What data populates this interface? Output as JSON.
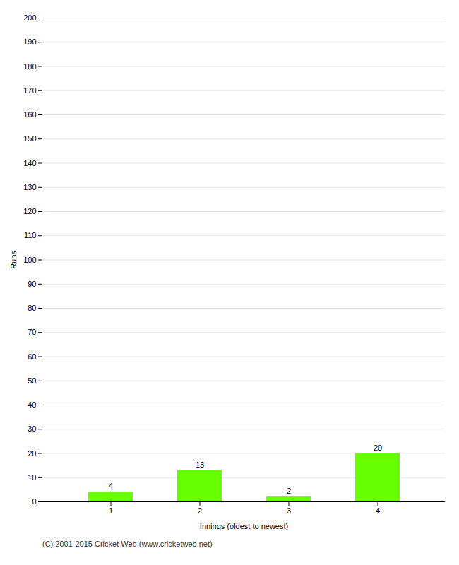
{
  "chart_data": {
    "type": "bar",
    "categories": [
      "1",
      "2",
      "3",
      "4"
    ],
    "values": [
      4,
      13,
      2,
      20
    ],
    "color": "#66ff00",
    "xlabel": "Innings (oldest to newest)",
    "ylabel": "Runs",
    "ylim": [
      0,
      200
    ],
    "yticks": [
      0,
      10,
      20,
      30,
      40,
      50,
      60,
      70,
      80,
      90,
      100,
      110,
      120,
      130,
      140,
      150,
      160,
      170,
      180,
      190,
      200
    ],
    "grid": true,
    "data_labels": true,
    "caption": "(C) 2001-2015 Cricket Web (www.cricketweb.net)"
  }
}
